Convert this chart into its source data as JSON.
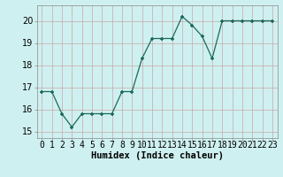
{
  "x": [
    0,
    1,
    2,
    3,
    4,
    5,
    6,
    7,
    8,
    9,
    10,
    11,
    12,
    13,
    14,
    15,
    16,
    17,
    18,
    19,
    20,
    21,
    22,
    23
  ],
  "y": [
    16.8,
    16.8,
    15.8,
    15.2,
    15.8,
    15.8,
    15.8,
    15.8,
    16.8,
    16.8,
    18.3,
    19.2,
    19.2,
    19.2,
    20.2,
    19.8,
    19.3,
    18.3,
    20.0,
    20.0,
    20.0,
    20.0,
    20.0,
    20.0
  ],
  "ylim": [
    14.7,
    20.7
  ],
  "yticks": [
    15,
    16,
    17,
    18,
    19,
    20
  ],
  "xlabel": "Humidex (Indice chaleur)",
  "bg_color": "#cff0f0",
  "line_color": "#1a6b5a",
  "grid_color": "#c8a8a8",
  "xlabel_fontsize": 7.5,
  "tick_fontsize": 7,
  "title": ""
}
